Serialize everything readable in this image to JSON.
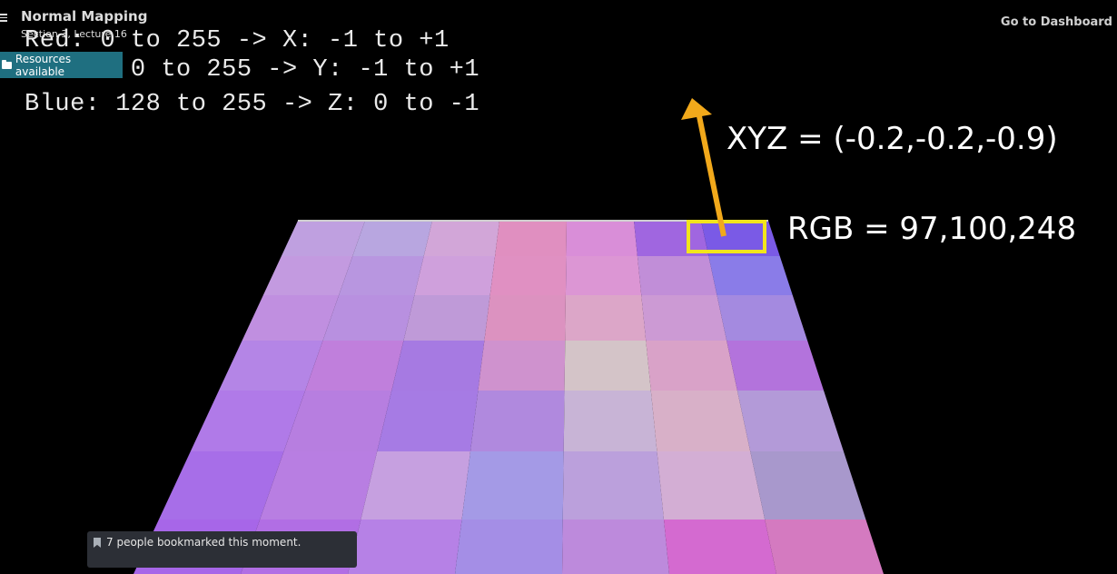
{
  "header": {
    "title": "Normal Mapping",
    "subtitle": "Section 3, Lecture 16",
    "dashboard_link": "Go to Dashboard"
  },
  "resources_button": {
    "label": "Resources available",
    "icon": "folder-icon"
  },
  "slide": {
    "lines": [
      "Red: 0 to 255 -> X: -1 to +1",
      "Green: 0 to 255 -> Y: -1 to +1",
      "Blue: 128 to 255 -> Z: 0 to -1"
    ],
    "xyz_label": "XYZ = (-0.2,-0.2,-0.9)",
    "rgb_label": "RGB = 97,100,248",
    "highlight_color": "#f2e51c",
    "arrow_color": "#f2a91b"
  },
  "bookmark_toast": {
    "text": "7 people bookmarked this moment.",
    "icon": "bookmark-icon"
  },
  "colors": {
    "background": "#000000",
    "resources_bg": "#1f6f80",
    "toast_bg": "#2c2f36"
  }
}
